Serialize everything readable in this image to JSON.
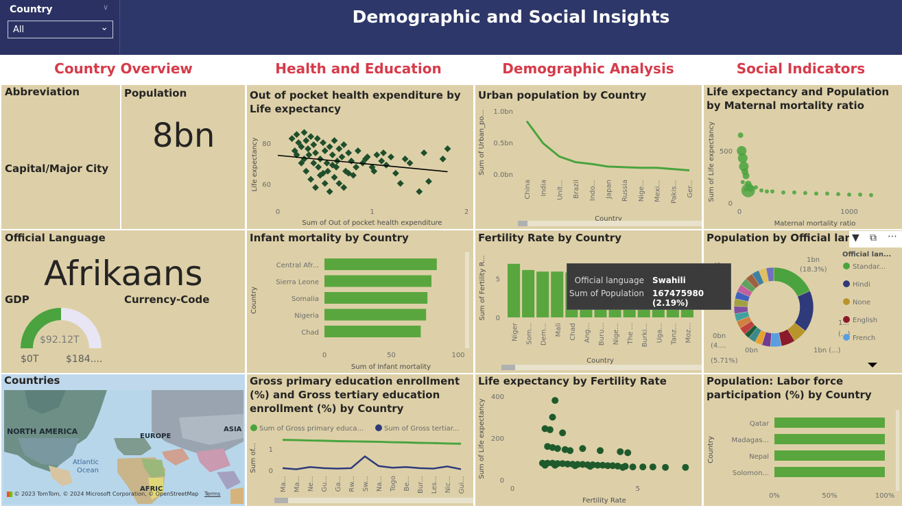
{
  "header": {
    "title": "Demographic and Social Insights",
    "slicer": {
      "label": "Country",
      "value": "All"
    }
  },
  "sections": [
    "Country Overview",
    "Health and Education",
    "Demographic Analysis",
    "Social Indicators"
  ],
  "cards": {
    "abbreviation": "Abbreviation",
    "population_label": "Population",
    "population_value": "8bn",
    "capital": "Capital/Major City",
    "official_language_label": "Official Language",
    "official_language_value": "Afrikaans",
    "gdp_label": "GDP",
    "currency_label": "Currency-Code",
    "gdp_value": "$92.12T",
    "gdp_min": "$0T",
    "gdp_max": "$184....",
    "gdp_fill": 0.5
  },
  "map": {
    "title": "Countries",
    "labels": [
      "NORTH AMERICA",
      "EUROPE",
      "ASIA",
      "Atlantic Ocean",
      "AFRIC"
    ],
    "credit": "© 2023 TomTom, © 2024 Microsoft Corporation, © OpenStreetMap",
    "terms": "Terms"
  },
  "charts": {
    "oop": {
      "title": "Out of pocket health expenditure by Life expectancy",
      "xlabel": "Sum of Out of pocket health expenditure",
      "ylabel": "Life expectancy"
    },
    "urban": {
      "title": "Urban population by Country",
      "xlabel": "Country",
      "ylabel": "Sum of Urban_po..."
    },
    "lifepop": {
      "title": "Life expectancy and Population by Maternal mortality ratio",
      "xlabel": "Maternal mortality ratio",
      "ylabel": "Sum of Life expectancy"
    },
    "infant": {
      "title": "Infant mortality by Country",
      "xlabel": "Sum of Infant mortality",
      "ylabel": "Country"
    },
    "fertility": {
      "title": "Fertility Rate by Country",
      "xlabel": "Country",
      "ylabel": "Sum of Fertility R..."
    },
    "donut": {
      "title": "Population by Official langu",
      "legend_title": "Official lan...",
      "legend": [
        {
          "name": "Standar...",
          "color": "#4aa33e"
        },
        {
          "name": "Hindi",
          "color": "#2e3a7a"
        },
        {
          "name": "None",
          "color": "#b8952a"
        },
        {
          "name": "English",
          "color": "#8b1a2b"
        },
        {
          "name": "French",
          "color": "#5a9ee0"
        }
      ],
      "labels": [
        "1bn",
        "(18.3%)",
        "1...",
        "(...)",
        "1bn (...)",
        "0bn",
        "(5.71%)",
        "0bn",
        "(4....",
        "(0...."
      ]
    },
    "enroll": {
      "title": "Gross primary education enrollment (%) and Gross tertiary education enrollment (%) by Country",
      "legend1": "Sum of Gross primary educa...",
      "legend2": "Sum of Gross tertiar...",
      "ylabel": "Sum of..."
    },
    "lifefert": {
      "title": "Life expectancy by Fertility Rate",
      "xlabel": "Fertility Rate",
      "ylabel": "Sum of Life expectancy"
    },
    "labor": {
      "title": "Population: Labor force participation (%) by Country",
      "ylabel": "Country"
    }
  },
  "tooltip": {
    "k1": "Official language",
    "v1": "Swahili",
    "k2": "Sum of Population",
    "v2": "167475980 (2.19%)"
  },
  "chart_data": [
    {
      "type": "scatter",
      "title": "Out of pocket health expenditure by Life expectancy",
      "xlabel": "Sum of Out of pocket health expenditure",
      "ylabel": "Life expectancy",
      "xlim": [
        0,
        2
      ],
      "ylim": [
        50,
        88
      ],
      "xticks": [
        "0",
        "1",
        "2"
      ],
      "yticks": [
        "60",
        "80"
      ],
      "trend": [
        [
          0,
          74
        ],
        [
          1.8,
          66
        ]
      ],
      "points": [
        [
          0.15,
          82
        ],
        [
          0.2,
          84
        ],
        [
          0.22,
          80
        ],
        [
          0.25,
          78
        ],
        [
          0.28,
          85
        ],
        [
          0.3,
          81
        ],
        [
          0.32,
          77
        ],
        [
          0.35,
          83
        ],
        [
          0.38,
          79
        ],
        [
          0.4,
          75
        ],
        [
          0.42,
          82
        ],
        [
          0.45,
          72
        ],
        [
          0.48,
          80
        ],
        [
          0.5,
          76
        ],
        [
          0.52,
          70
        ],
        [
          0.55,
          78
        ],
        [
          0.58,
          74
        ],
        [
          0.6,
          81
        ],
        [
          0.62,
          68
        ],
        [
          0.65,
          77
        ],
        [
          0.68,
          73
        ],
        [
          0.7,
          79
        ],
        [
          0.72,
          66
        ],
        [
          0.75,
          75
        ],
        [
          0.78,
          71
        ],
        [
          0.8,
          64
        ],
        [
          0.85,
          76
        ],
        [
          0.9,
          70
        ],
        [
          0.95,
          73
        ],
        [
          1.0,
          68
        ],
        [
          1.05,
          74
        ],
        [
          1.1,
          71
        ],
        [
          1.15,
          69
        ],
        [
          1.2,
          73
        ],
        [
          1.25,
          65
        ],
        [
          1.3,
          60
        ],
        [
          1.35,
          72
        ],
        [
          1.4,
          70
        ],
        [
          1.5,
          56
        ],
        [
          1.6,
          61
        ],
        [
          1.75,
          72
        ],
        [
          0.3,
          66
        ],
        [
          0.35,
          62
        ],
        [
          0.4,
          58
        ],
        [
          0.45,
          64
        ],
        [
          0.5,
          60
        ],
        [
          0.55,
          56
        ],
        [
          0.6,
          63
        ],
        [
          0.25,
          70
        ],
        [
          0.2,
          74
        ],
        [
          0.18,
          76
        ],
        [
          0.65,
          60
        ],
        [
          0.7,
          58
        ],
        [
          0.75,
          65
        ],
        [
          0.33,
          74
        ],
        [
          0.43,
          68
        ],
        [
          0.53,
          66
        ],
        [
          0.63,
          71
        ],
        [
          0.83,
          68
        ],
        [
          0.93,
          72
        ],
        [
          1.02,
          66
        ],
        [
          1.12,
          75
        ],
        [
          1.55,
          75
        ],
        [
          1.8,
          77
        ],
        [
          0.28,
          72
        ],
        [
          0.38,
          70
        ],
        [
          0.48,
          65
        ],
        [
          0.58,
          69
        ]
      ]
    },
    {
      "type": "line",
      "title": "Urban population by Country",
      "categories": [
        "China",
        "India",
        "Unit...",
        "Brazil",
        "Indo...",
        "Japan",
        "Russia",
        "Nige...",
        "Mexi...",
        "Pakis...",
        "Ger..."
      ],
      "values": [
        0.84,
        0.49,
        0.28,
        0.19,
        0.16,
        0.12,
        0.11,
        0.1,
        0.1,
        0.08,
        0.06
      ],
      "ylim": [
        0,
        1.0
      ],
      "yticks": [
        "0.0bn",
        "0.5bn",
        "1.0bn"
      ]
    },
    {
      "type": "scatter",
      "title": "Life expectancy and Population by Maternal mortality ratio",
      "xlim": [
        0,
        1300
      ],
      "ylim": [
        0,
        750
      ],
      "xticks": [
        "0",
        "1000"
      ],
      "yticks": [
        "0",
        "500"
      ],
      "points": [
        [
          10,
          650
        ],
        [
          20,
          500
        ],
        [
          30,
          430
        ],
        [
          40,
          350
        ],
        [
          50,
          300
        ],
        [
          60,
          260
        ],
        [
          80,
          180
        ],
        [
          100,
          140
        ],
        [
          150,
          150
        ],
        [
          200,
          120
        ],
        [
          250,
          110
        ],
        [
          300,
          110
        ],
        [
          400,
          100
        ],
        [
          500,
          100
        ],
        [
          600,
          95
        ],
        [
          700,
          90
        ],
        [
          800,
          90
        ],
        [
          900,
          85
        ],
        [
          1000,
          80
        ],
        [
          1100,
          80
        ],
        [
          1200,
          75
        ],
        [
          30,
          200
        ],
        [
          60,
          130
        ]
      ]
    },
    {
      "type": "bar",
      "title": "Infant mortality by Country",
      "categories": [
        "Central Afr...",
        "Sierra Leone",
        "Somalia",
        "Nigeria",
        "Chad"
      ],
      "values": [
        84,
        80,
        77,
        76,
        72
      ],
      "xlim": [
        0,
        100
      ],
      "xticks": [
        "0",
        "50",
        "100"
      ]
    },
    {
      "type": "bar",
      "title": "Fertility Rate by Country",
      "categories": [
        "Niger",
        "Som...",
        "Dem...",
        "Mali",
        "Chad",
        "Ang...",
        "Buru...",
        "Nige...",
        "The ...",
        "Burki...",
        "Uga...",
        "Tanz...",
        "Moz..."
      ],
      "values": [
        6.9,
        6.1,
        5.9,
        5.9,
        5.8,
        5.5,
        5.4,
        5.4,
        5.2,
        5.2,
        5.0,
        4.9,
        4.9
      ],
      "ylim": [
        0,
        7.5
      ],
      "yticks": [
        "0",
        "5"
      ]
    },
    {
      "type": "pie",
      "title": "Population by Official langu",
      "slices": [
        {
          "name": "Standar...",
          "value": 18.3,
          "color": "#4aa33e"
        },
        {
          "name": "Hindi",
          "value": 17.0,
          "color": "#2e3a7a"
        },
        {
          "name": "None",
          "value": 5.9,
          "color": "#b8952a"
        },
        {
          "name": "English",
          "value": 5.71,
          "color": "#8b1a2b"
        },
        {
          "name": "French",
          "value": 4.5,
          "color": "#5a9ee0"
        },
        {
          "name": "",
          "value": 3.5,
          "color": "#6f3c91"
        },
        {
          "name": "",
          "value": 3.0,
          "color": "#e8a030"
        },
        {
          "name": "",
          "value": 3.0,
          "color": "#3a8a8a"
        },
        {
          "name": "Swahili",
          "value": 2.19,
          "color": "#1c5c3c"
        },
        {
          "name": "",
          "value": 37.0,
          "color": "#mixed"
        }
      ]
    },
    {
      "type": "line",
      "title": "Gross primary education enrollment (%) and Gross tertiary education enrollment (%) by Country",
      "categories": [
        "Ma...",
        "Ma...",
        "Ne...",
        "Gu...",
        "Ga...",
        "Rw...",
        "Sw...",
        "Na...",
        "Togo",
        "Be...",
        "Bur...",
        "Les...",
        "Nic...",
        "Gui..."
      ],
      "series": [
        {
          "name": "Sum of Gross primary educa...",
          "color": "#4aa33e",
          "values": [
            1.42,
            1.41,
            1.39,
            1.38,
            1.36,
            1.35,
            1.34,
            1.33,
            1.31,
            1.3,
            1.28,
            1.27,
            1.25,
            1.24
          ]
        },
        {
          "name": "Sum of Gross tertiar...",
          "color": "#2e3a7a",
          "values": [
            0.1,
            0.05,
            0.15,
            0.1,
            0.08,
            0.1,
            0.65,
            0.2,
            0.12,
            0.15,
            0.1,
            0.08,
            0.18,
            0.05
          ]
        }
      ],
      "yticks": [
        "0",
        "1"
      ]
    },
    {
      "type": "scatter",
      "title": "Life expectancy by Fertility Rate",
      "xlabel": "Fertility Rate",
      "ylabel": "Sum of Life expectancy",
      "xlim": [
        0,
        7
      ],
      "ylim": [
        0,
        400
      ],
      "xticks": [
        "0",
        "5"
      ],
      "yticks": [
        "0",
        "200",
        "400"
      ],
      "points": [
        [
          1.7,
          380
        ],
        [
          1.6,
          300
        ],
        [
          1.3,
          245
        ],
        [
          1.5,
          240
        ],
        [
          2.0,
          225
        ],
        [
          1.4,
          160
        ],
        [
          1.6,
          155
        ],
        [
          1.8,
          150
        ],
        [
          2.1,
          145
        ],
        [
          2.3,
          140
        ],
        [
          2.8,
          150
        ],
        [
          3.5,
          140
        ],
        [
          4.3,
          135
        ],
        [
          4.6,
          130
        ],
        [
          1.2,
          80
        ],
        [
          1.4,
          80
        ],
        [
          1.6,
          80
        ],
        [
          1.8,
          78
        ],
        [
          2.0,
          78
        ],
        [
          2.2,
          76
        ],
        [
          2.4,
          75
        ],
        [
          2.6,
          74
        ],
        [
          2.8,
          74
        ],
        [
          3.0,
          72
        ],
        [
          3.2,
          72
        ],
        [
          3.4,
          70
        ],
        [
          3.6,
          70
        ],
        [
          3.8,
          68
        ],
        [
          4.0,
          68
        ],
        [
          4.2,
          66
        ],
        [
          4.5,
          65
        ],
        [
          4.8,
          62
        ],
        [
          5.2,
          62
        ],
        [
          5.6,
          62
        ],
        [
          6.1,
          60
        ],
        [
          6.9,
          60
        ],
        [
          1.3,
          70
        ],
        [
          1.7,
          70
        ],
        [
          2.5,
          68
        ],
        [
          3.1,
          65
        ],
        [
          4.4,
          60
        ]
      ]
    },
    {
      "type": "bar",
      "title": "Population: Labor force participation (%) by Country",
      "categories": [
        "Qatar",
        "Madagas...",
        "Nepal",
        "Solomon..."
      ],
      "values": [
        100,
        100,
        100,
        100
      ],
      "xlim": [
        0,
        100
      ],
      "xticks": [
        "0%",
        "50%",
        "100%"
      ]
    }
  ]
}
